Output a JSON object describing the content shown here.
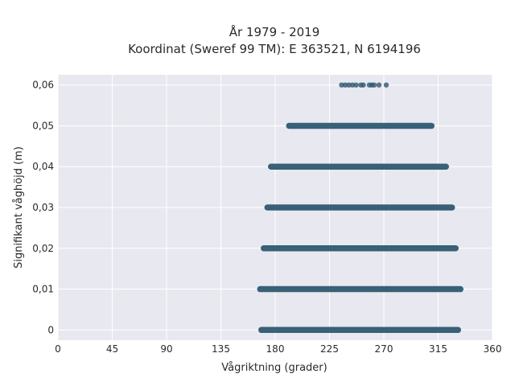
{
  "chart_data": {
    "type": "scatter",
    "title_line1": "År 1979 - 2019",
    "title_line2": "Koordinat (Sweref 99 TM): E 363521, N 6194196",
    "xlabel": "Vågriktning (grader)",
    "ylabel": "Signifikant våghöjd (m)",
    "xlim": [
      0,
      360
    ],
    "ylim": [
      -0.0025,
      0.0625
    ],
    "x_ticks": [
      0,
      45,
      90,
      135,
      180,
      225,
      270,
      315,
      360
    ],
    "x_tick_labels": [
      "0",
      "45",
      "90",
      "135",
      "180",
      "225",
      "270",
      "315",
      "360"
    ],
    "y_ticks": [
      0,
      0.01,
      0.02,
      0.03,
      0.04,
      0.05,
      0.06
    ],
    "y_tick_labels": [
      "0",
      "0,01",
      "0,02",
      "0,03",
      "0,04",
      "0,05",
      "0,06"
    ],
    "grid": true,
    "colors": {
      "marker": "#2e5870",
      "plot_background": "#e8e8f0",
      "grid": "#ffffff"
    },
    "bands": [
      {
        "y": 0.0,
        "x_from": 168,
        "x_to": 332
      },
      {
        "y": 0.01,
        "x_from": 167,
        "x_to": 334
      },
      {
        "y": 0.02,
        "x_from": 170,
        "x_to": 330
      },
      {
        "y": 0.03,
        "x_from": 173,
        "x_to": 327
      },
      {
        "y": 0.04,
        "x_from": 176,
        "x_to": 322
      },
      {
        "y": 0.05,
        "x_from": 191,
        "x_to": 310
      },
      {
        "y": 0.06,
        "x_from": 235,
        "x_to": 272,
        "sparse_x": [
          235,
          238,
          241,
          244,
          247,
          251,
          253,
          258,
          260,
          262,
          266,
          272
        ]
      }
    ]
  }
}
